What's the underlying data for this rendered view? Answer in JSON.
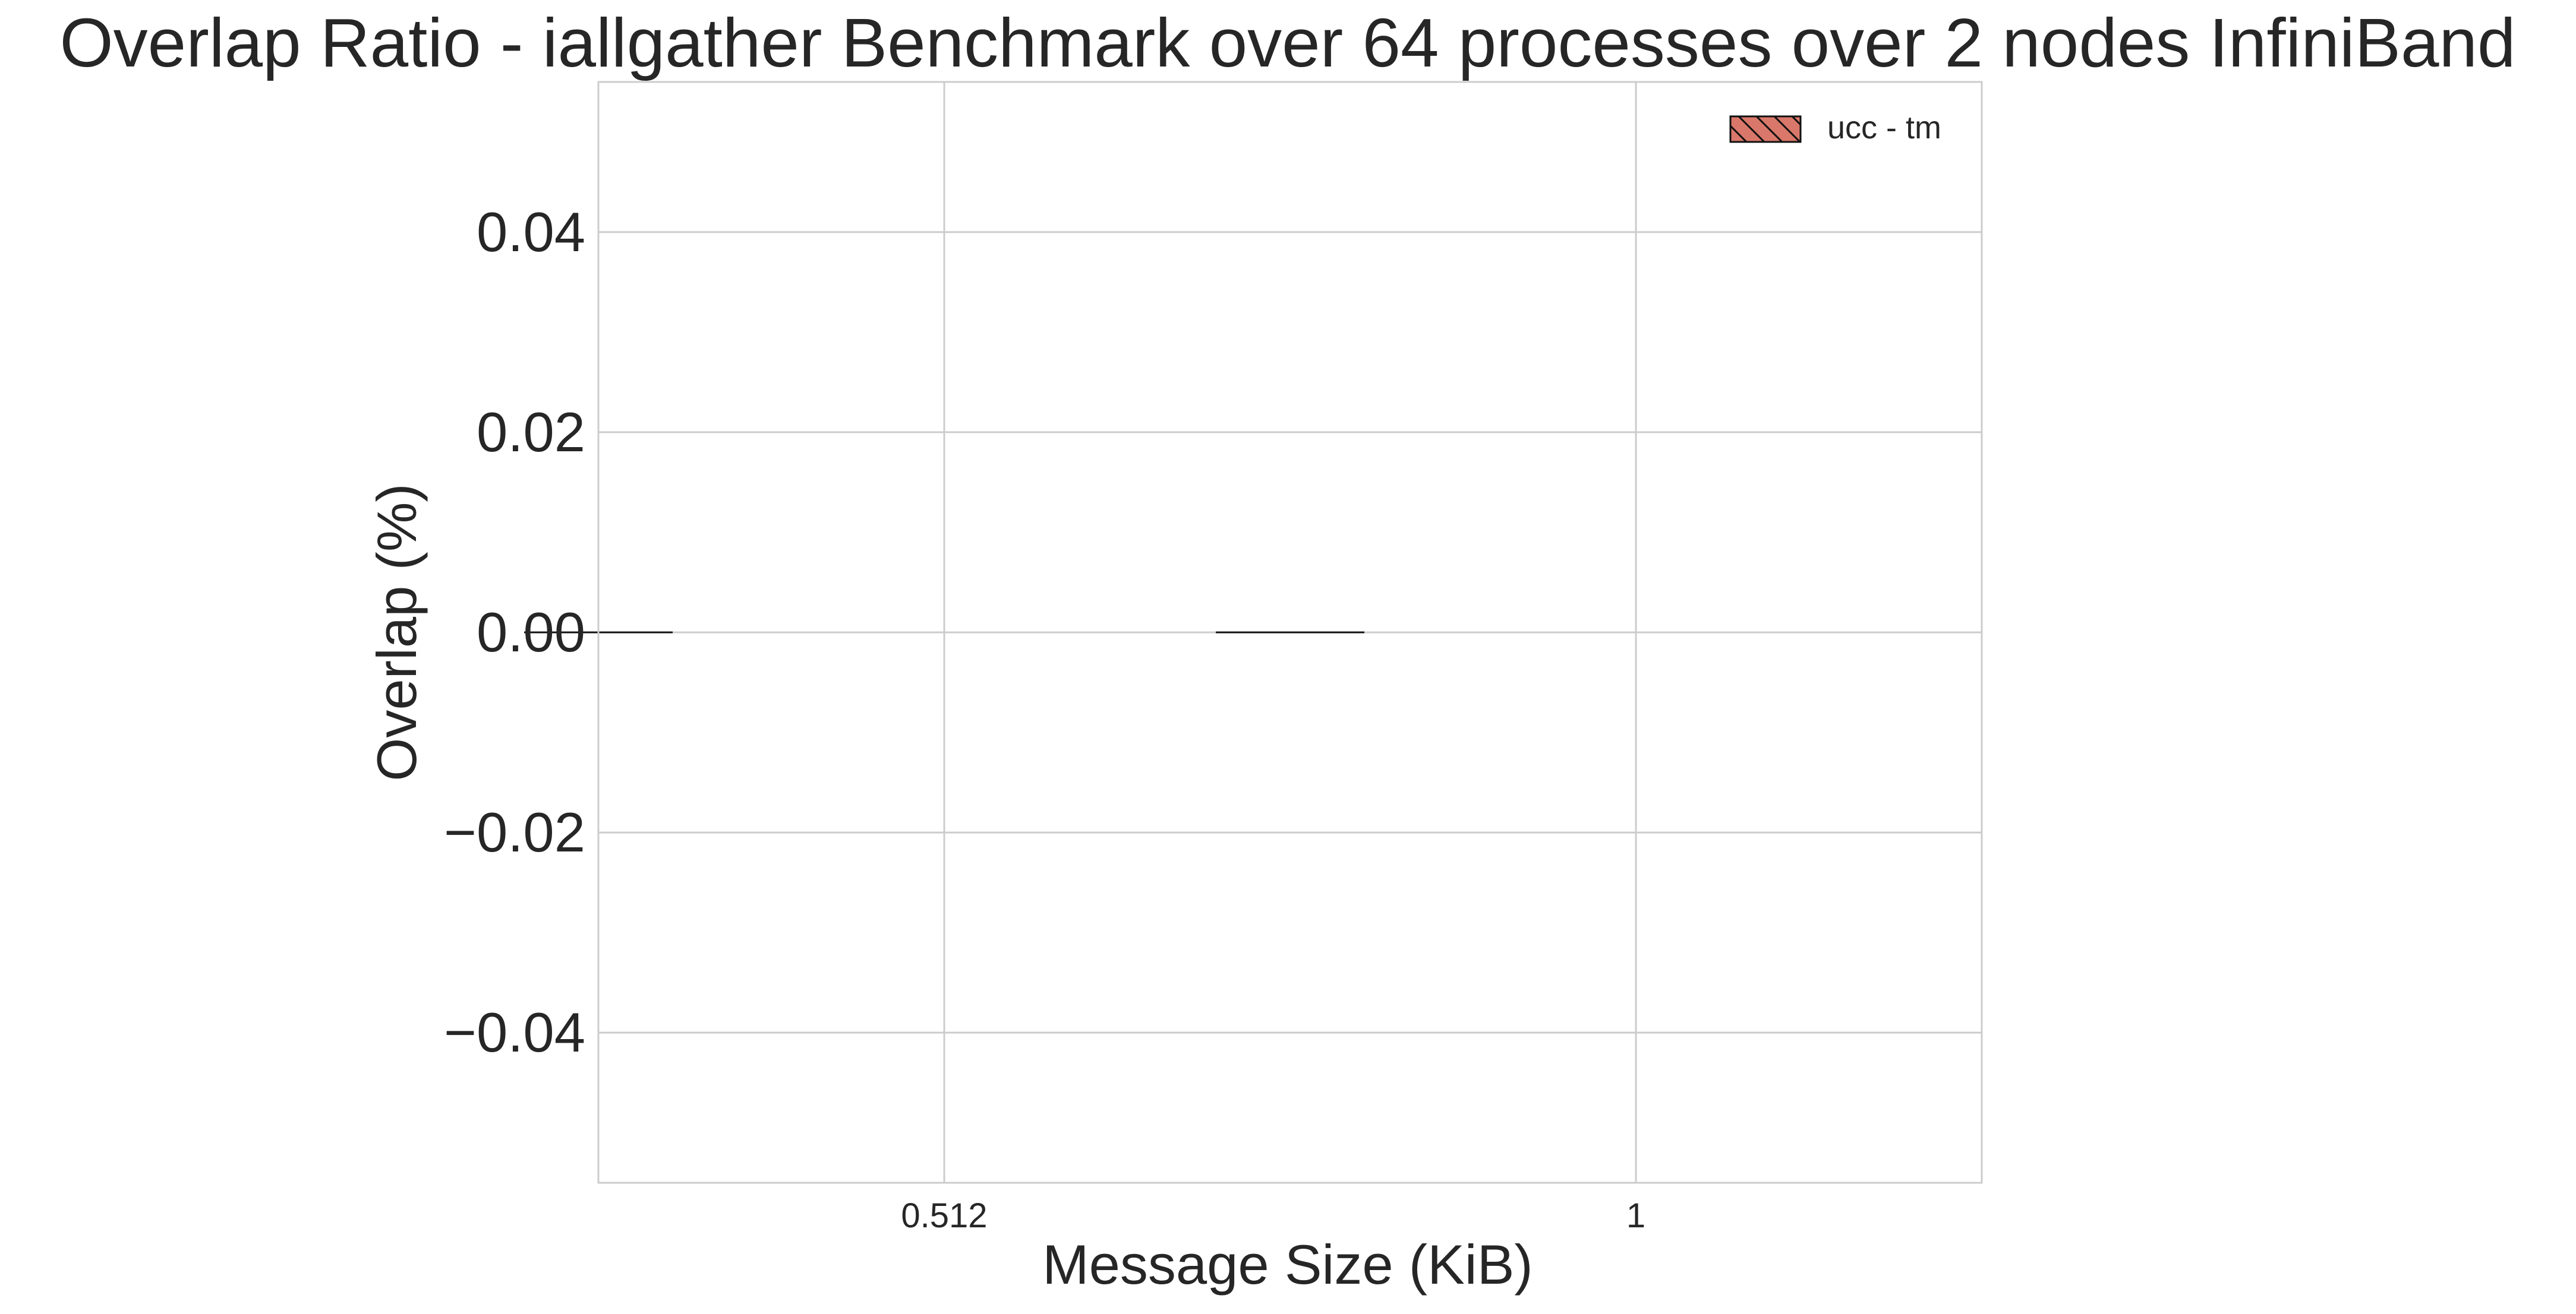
{
  "chart_data": {
    "type": "bar",
    "title": "Overlap Ratio - iallgather Benchmark over 64 processes over 2 nodes InfiniBand",
    "xlabel": "Message Size (KiB)",
    "ylabel": "Overlap (%)",
    "categories": [
      "0.512",
      "1"
    ],
    "series": [
      {
        "name": "ucc - tm",
        "values": [
          0.0,
          0.0
        ],
        "color": "#d9786a",
        "hatch": "\\\\"
      }
    ],
    "ylim": [
      -0.055,
      0.055
    ],
    "yticks": [
      -0.04,
      -0.02,
      0.0,
      0.02,
      0.04
    ],
    "ytick_labels": [
      "−0.04",
      "−0.02",
      "0.00",
      "0.02",
      "0.04"
    ],
    "grid": true,
    "legend_position": "top-right"
  }
}
